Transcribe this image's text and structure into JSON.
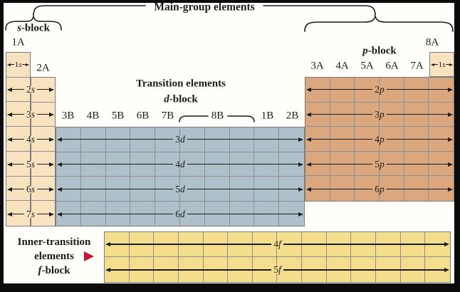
{
  "titles": {
    "main_group": "Main-group elements",
    "transition": "Transition elements",
    "d_block": "d-block",
    "s_block": "s-block",
    "p_block": "p-block",
    "f_block": "f-block",
    "inner_transition_line1": "Inner-transition",
    "inner_transition_line2": "elements"
  },
  "headers": {
    "s_groups": [
      "1A",
      "2A"
    ],
    "d_groups": [
      "3B",
      "4B",
      "5B",
      "6B",
      "7B",
      "8B",
      "1B",
      "2B"
    ],
    "p_groups": [
      "3A",
      "4A",
      "5A",
      "6A",
      "7A"
    ],
    "he_group": "8A"
  },
  "blocks": {
    "s": {
      "columns": 2,
      "row_labels": [
        "1s",
        "2s",
        "3s",
        "4s",
        "5s",
        "6s",
        "7s"
      ]
    },
    "d": {
      "columns": 10,
      "row_labels": [
        "3d",
        "4d",
        "5d",
        "6d"
      ]
    },
    "p": {
      "columns": 6,
      "row_labels": [
        "2p",
        "3p",
        "4p",
        "5p",
        "6p"
      ]
    },
    "f": {
      "columns": 14,
      "row_labels": [
        "4f",
        "5f"
      ]
    },
    "he": {
      "row_label": "1s"
    }
  },
  "colors": {
    "s_block": "#f8e2bf",
    "d_block": "#aec1cb",
    "p_block": "#dba77e",
    "f_block": "#f4dd8d",
    "grid_line": "#8e8e8e",
    "line": "#1c1c1c",
    "accent_red": "#cd1137",
    "frame": "#0b0b0b",
    "background": "#fffefb"
  }
}
